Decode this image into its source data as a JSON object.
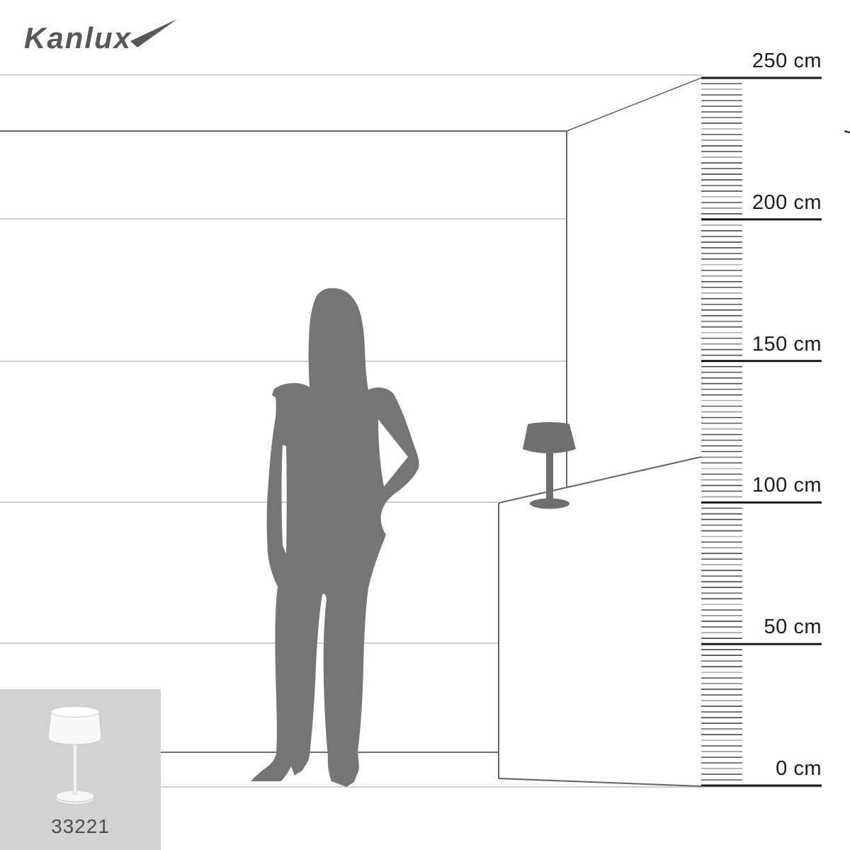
{
  "brand": {
    "logo_text": "Kanlux"
  },
  "ruler": {
    "unit": "cm",
    "min_cm": 0,
    "max_cm": 250,
    "major_step_cm": 50,
    "minor_step_cm": 2,
    "labels": [
      {
        "value": 250,
        "text": "250 cm"
      },
      {
        "value": 200,
        "text": "200 cm"
      },
      {
        "value": 150,
        "text": "150 cm"
      },
      {
        "value": 100,
        "text": "100 cm"
      },
      {
        "value": 50,
        "text": "50 cm"
      },
      {
        "value": 0,
        "text": "0 cm"
      }
    ]
  },
  "scene": {
    "setting": "room-corner-perspective-with-height-ruler",
    "figure": "standing-woman-silhouette",
    "product": "table-lamp-silhouette-on-countertop"
  },
  "product_thumbnail": {
    "code": "33221",
    "image": "white-table-lamp-with-shade"
  },
  "colors": {
    "silhouette_gray": "#757575",
    "lamp_silhouette_gray": "#6f6f6f",
    "ruler_major_line": "#1a1a1a",
    "ruler_minor_tick": "#5a5a5a",
    "wall_line_light": "#cfcfcf",
    "wall_line_dark": "#636363",
    "thumbnail_background": "#d2d2d2",
    "logo_gray": "#58585a",
    "label_text": "#1c1c1c"
  }
}
